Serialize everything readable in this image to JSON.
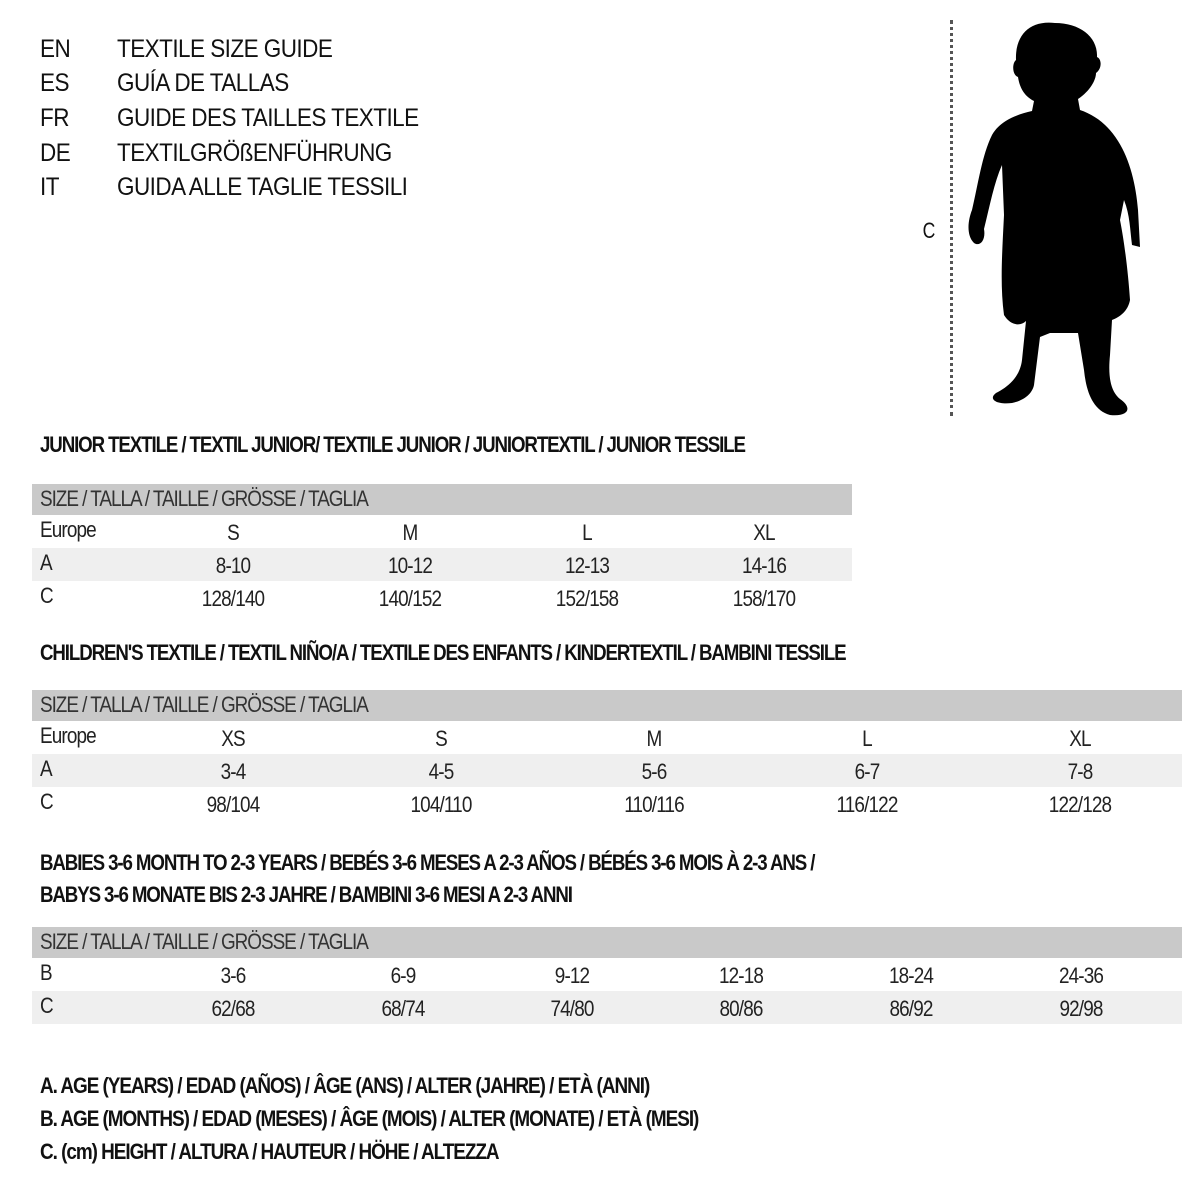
{
  "titles": [
    {
      "lang": "EN",
      "text": "TEXTILE SIZE GUIDE"
    },
    {
      "lang": "ES",
      "text": "GUÍA DE TALLAS"
    },
    {
      "lang": "FR",
      "text": "GUIDE DES TAILLES TEXTILE"
    },
    {
      "lang": "DE",
      "text": "TEXTILGRÖßENFÜHRUNG"
    },
    {
      "lang": "IT",
      "text": "GUIDA ALLE TAGLIE TESSILI"
    }
  ],
  "figure": {
    "measure_label": "C",
    "icon": "child-silhouette-icon"
  },
  "sections": [
    {
      "heading": "JUNIOR TEXTILE / TEXTIL JUNIOR/ TEXTILE JUNIOR / JUNIORTEXTIL / JUNIOR TESSILE",
      "header": "SIZE / TALLA / TAILLE / GRÖSSE / TAGLIA",
      "rows": [
        {
          "label": "Europe",
          "values": [
            "S",
            "M",
            "L",
            "XL"
          ]
        },
        {
          "label": "A",
          "values": [
            "8-10",
            "10-12",
            "12-13",
            "14-16"
          ]
        },
        {
          "label": "C",
          "values": [
            "128/140",
            "140/152",
            "152/158",
            "158/170"
          ]
        }
      ]
    },
    {
      "heading": "CHILDREN'S TEXTILE / TEXTIL NIÑO/A / TEXTILE DES ENFANTS / KINDERTEXTIL / BAMBINI TESSILE",
      "header": "SIZE / TALLA / TAILLE / GRÖSSE / TAGLIA",
      "rows": [
        {
          "label": "Europe",
          "values": [
            "XS",
            "S",
            "M",
            "L",
            "XL"
          ]
        },
        {
          "label": "A",
          "values": [
            "3-4",
            "4-5",
            "5-6",
            "6-7",
            "7-8"
          ]
        },
        {
          "label": "C",
          "values": [
            "98/104",
            "104/110",
            "110/116",
            "116/122",
            "122/128"
          ]
        }
      ]
    },
    {
      "heading": "BABIES 3-6 MONTH TO 2-3 YEARS / BEBÉS 3-6 MESES A 2-3 AÑOS / BÉBÉS 3-6 MOIS À 2-3 ANS /",
      "heading2": "BABYS 3-6 MONATE BIS 2-3 JAHRE / BAMBINI 3-6 MESI A 2-3 ANNI",
      "header": "SIZE / TALLA / TAILLE / GRÖSSE / TAGLIA",
      "rows": [
        {
          "label": "B",
          "values": [
            "3-6",
            "6-9",
            "9-12",
            "12-18",
            "18-24",
            "24-36"
          ]
        },
        {
          "label": "C",
          "values": [
            "62/68",
            "68/74",
            "74/80",
            "80/86",
            "86/92",
            "92/98"
          ]
        }
      ]
    }
  ],
  "legend": [
    "A. AGE (YEARS) / EDAD (AÑOS) / ÂGE (ANS) / ALTER (JAHRE) / ETÀ (ANNI)",
    "B. AGE (MONTHS) / EDAD (MESES) / ÂGE (MOIS) / ALTER (MONATE) / ETÀ (MESI)",
    "C. (cm) HEIGHT / ALTURA / HAUTEUR / HÖHE / ALTEZZA"
  ]
}
